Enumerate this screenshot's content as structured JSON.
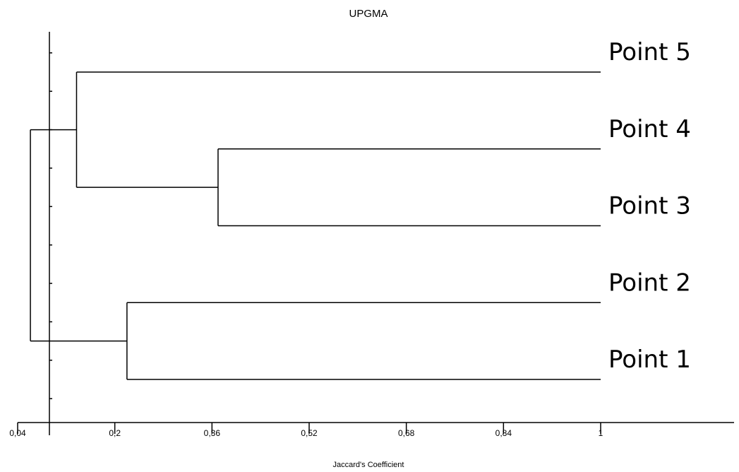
{
  "chart_data": {
    "type": "dendrogram",
    "title": "UPGMA",
    "xlabel": "Jaccard's Coefficient",
    "xlim": [
      0.04,
      1
    ],
    "xticks": [
      "0,04",
      "0,2",
      "0,36",
      "0,52",
      "0,68",
      "0,84",
      "1"
    ],
    "xtick_values": [
      0.04,
      0.2,
      0.36,
      0.52,
      0.68,
      0.84,
      1
    ],
    "leaves": [
      "Point 5",
      "Point 4",
      "Point 3",
      "Point 2",
      "Point 1"
    ],
    "merges": [
      {
        "members": [
          "Point 4",
          "Point 3"
        ],
        "height": 0.37
      },
      {
        "members": [
          "Point 2",
          "Point 1"
        ],
        "height": 0.22
      },
      {
        "members": [
          "Point 5",
          "Point 4",
          "Point 3"
        ],
        "height": 0.137
      },
      {
        "members": [
          "Point 5",
          "Point 4",
          "Point 3",
          "Point 2",
          "Point 1"
        ],
        "height": 0.061
      }
    ],
    "grid": false,
    "legend": "none"
  }
}
